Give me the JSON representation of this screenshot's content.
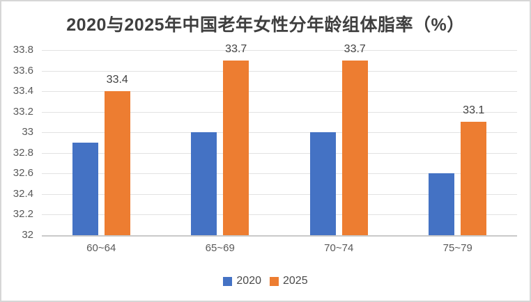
{
  "frame": {
    "background": "#FFFFFF",
    "border_color": "#D6D6D6"
  },
  "chart_data": {
    "type": "bar",
    "title": "2020与2025年中国老年女性分年龄组体脂率（%）",
    "categories": [
      "60~64",
      "65~69",
      "70~74",
      "75~79"
    ],
    "series": [
      {
        "name": "2020",
        "color": "#4472C4",
        "values": [
          32.9,
          33,
          33,
          32.6
        ],
        "data_labels": null
      },
      {
        "name": "2025",
        "color": "#ED7D31",
        "values": [
          33.4,
          33.7,
          33.7,
          33.1
        ],
        "data_labels": [
          "33.4",
          "33.7",
          "33.7",
          "33.1"
        ]
      }
    ],
    "y_axis": {
      "min": 32,
      "max": 33.8,
      "step": 0.2,
      "tick_labels": [
        "33.8",
        "33.6",
        "33.4",
        "33.2",
        "33",
        "32.8",
        "32.6",
        "32.4",
        "32.2",
        "32"
      ]
    },
    "x_axis": {
      "tick_labels": [
        "60~64",
        "65~69",
        "70~74",
        "75~79"
      ]
    },
    "legend": {
      "position": "bottom",
      "entries": [
        {
          "label": "2020",
          "color": "#4472C4"
        },
        {
          "label": "2025",
          "color": "#ED7D31"
        }
      ]
    },
    "grid": true,
    "gridline_color": "#E2E2E2",
    "axis_line_color": "#C9C9C9",
    "text_colors": {
      "title": "#3F3F3F",
      "axis_labels": "#595959",
      "data_labels": "#404040",
      "legend_labels": "#4A4A4A"
    }
  }
}
